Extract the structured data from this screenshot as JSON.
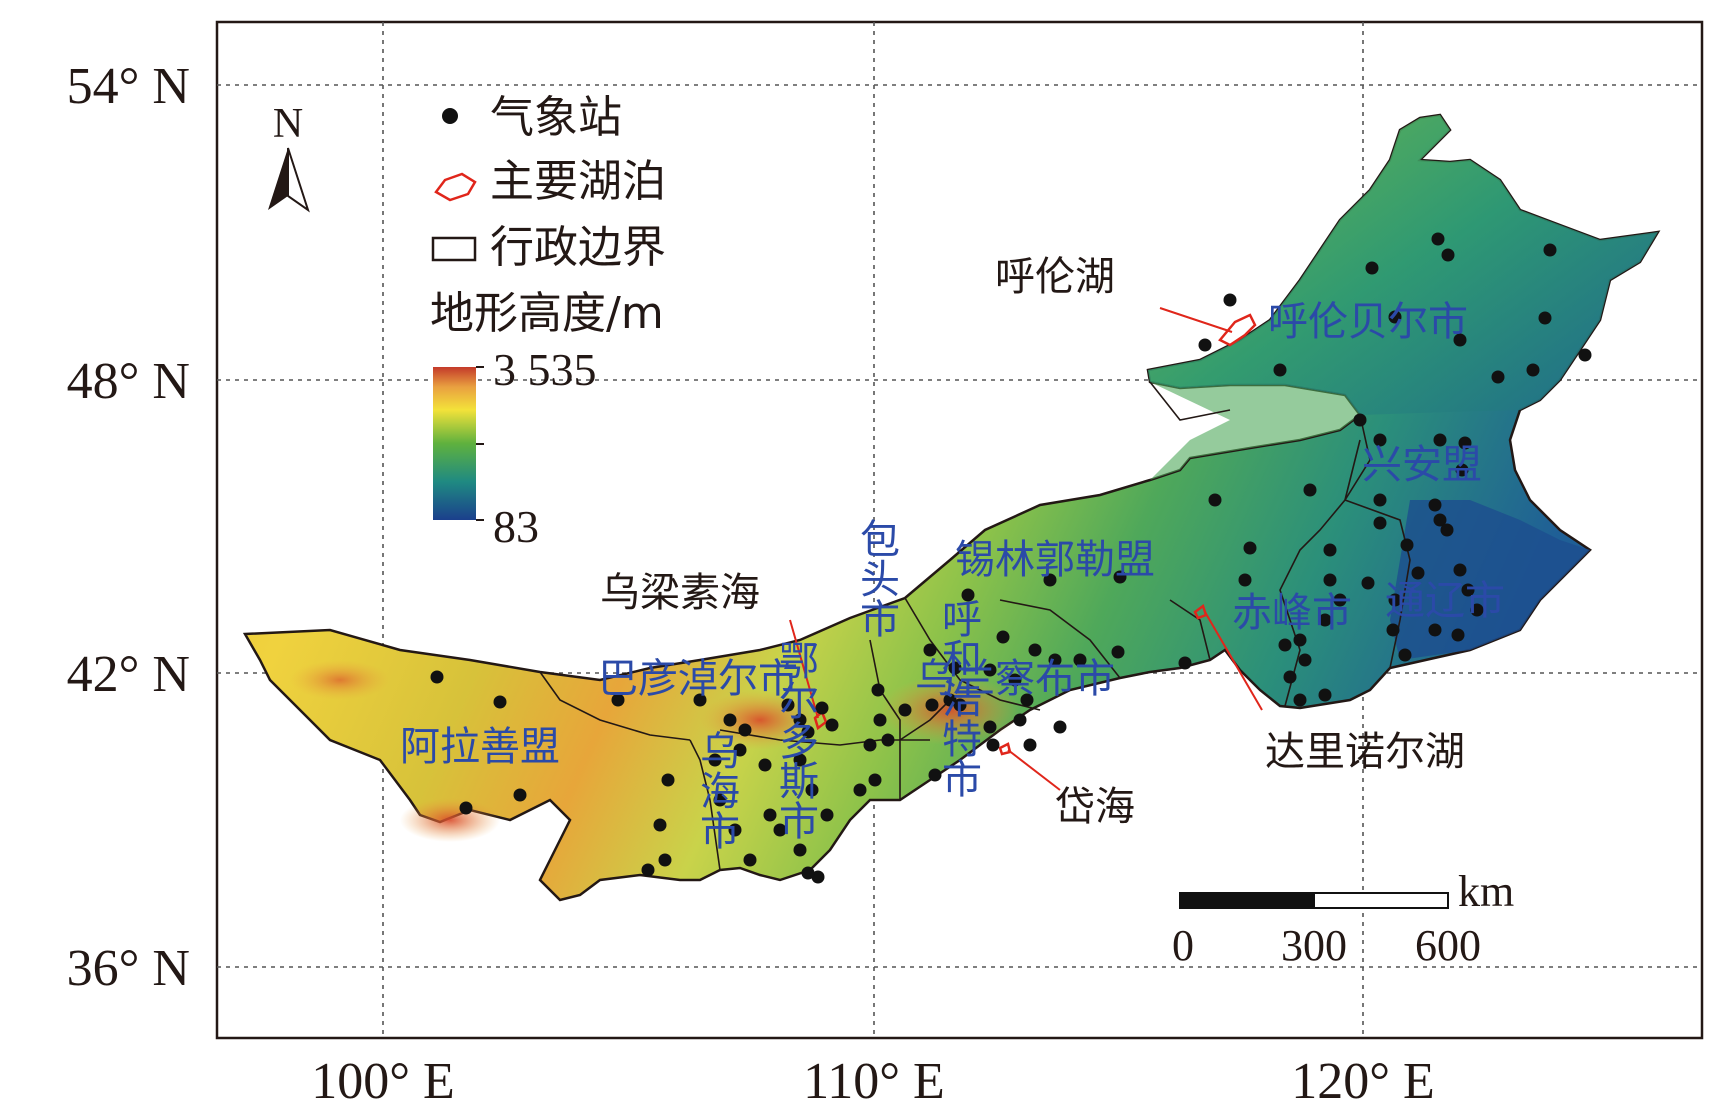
{
  "axes": {
    "lat_labels": [
      "54° N",
      "48° N",
      "42° N",
      "36° N"
    ],
    "lon_labels": [
      "100° E",
      "110° E",
      "120° E"
    ]
  },
  "north_arrow": {
    "label": "N",
    "icon": "north-arrow-icon"
  },
  "legend": {
    "station_label": "气象站",
    "lake_label": "主要湖泊",
    "boundary_label": "行政边界",
    "elevation_title": "地形高度/m",
    "elevation_max": "3 535",
    "elevation_min": "83",
    "colors": {
      "low": "#1b3f8c",
      "mid": "#5fb13e",
      "high_mid": "#f3e23a",
      "high": "#c43a2a"
    }
  },
  "regions": {
    "hulunbuir": "呼伦贝尔市",
    "hinggan": "兴安盟",
    "tongliao": "通辽市",
    "chifeng": "赤峰市",
    "xilingol": "锡林郭勒盟",
    "ulanqab": "乌兰察布市",
    "baotou": "包头市",
    "bayannur": "巴彦淖尔市",
    "alxa": "阿拉善盟",
    "wuhai": "乌海市",
    "ordos": "鄂尔多斯市",
    "hohhot": "呼和浩特市"
  },
  "lakes": {
    "hulun": "呼伦湖",
    "ulansuhai": "乌梁素海",
    "dali": "达里诺尔湖",
    "daihai": "岱海"
  },
  "scale_bar": {
    "unit": "km",
    "ticks": [
      "0",
      "300",
      "600"
    ]
  }
}
